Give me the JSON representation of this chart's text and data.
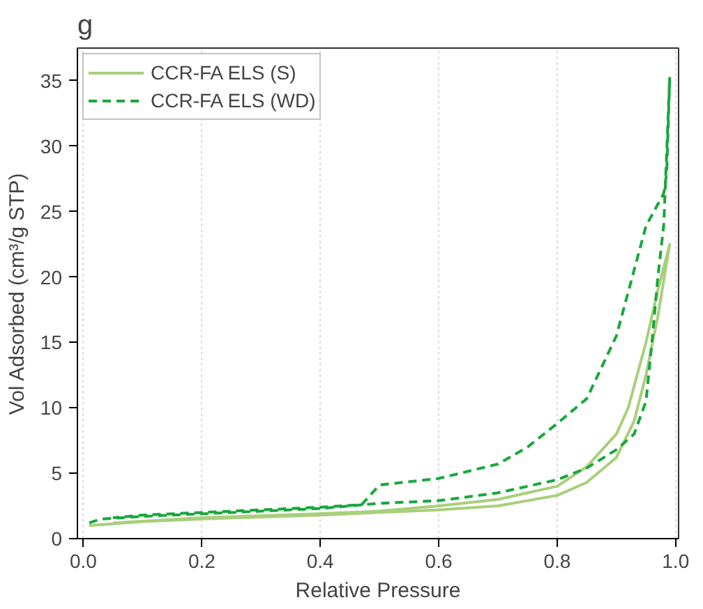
{
  "chart_data": {
    "type": "line",
    "title": "g",
    "xlabel": "Relative Pressure",
    "ylabel": "Vol Adsorbed (cm³/g STP)",
    "xlim": [
      -0.01,
      1.005
    ],
    "ylim": [
      0,
      37.5
    ],
    "xticks": [
      {
        "value": 0,
        "label": "0.0"
      },
      0.2,
      0.4,
      0.6,
      0.8,
      {
        "value": 1,
        "label": "1.0"
      }
    ],
    "yticks": [
      0,
      5,
      10,
      15,
      20,
      25,
      30,
      35
    ],
    "grid": "x",
    "legend": "top left",
    "series": [
      {
        "name": "CCR-FA ELS (S)",
        "color": "#a8cf7a",
        "line_style": "solid",
        "x": [
          0.01,
          0.1,
          0.2,
          0.4,
          0.6,
          0.7,
          0.8,
          0.85,
          0.9,
          0.93,
          0.95,
          0.97,
          0.99,
          0.97,
          0.95,
          0.92,
          0.9,
          0.85,
          0.8,
          0.7,
          0.6,
          0.5,
          0.4,
          0.2,
          0.05
        ],
        "values": [
          1.0,
          1.3,
          1.5,
          1.8,
          2.2,
          2.5,
          3.3,
          4.3,
          6.2,
          9,
          12.5,
          17,
          22.5,
          19,
          15,
          10,
          8,
          5.5,
          4.0,
          3.0,
          2.5,
          2.1,
          1.9,
          1.6,
          1.2
        ]
      },
      {
        "name": "CCR-FA ELS (WD)",
        "color": "#16a83a",
        "line_style": "dashed",
        "x": [
          0.01,
          0.03,
          0.1,
          0.2,
          0.3,
          0.4,
          0.5,
          0.6,
          0.7,
          0.8,
          0.85,
          0.9,
          0.93,
          0.95,
          0.96,
          0.97,
          0.98,
          0.99,
          0.985,
          0.98,
          0.95,
          0.9,
          0.85,
          0.8,
          0.75,
          0.7,
          0.6,
          0.5,
          0.47,
          0.4,
          0.3,
          0.2,
          0.1,
          0.05
        ],
        "values": [
          1.2,
          1.5,
          1.7,
          1.9,
          2.1,
          2.3,
          2.7,
          2.9,
          3.5,
          4.5,
          5.4,
          6.8,
          8,
          10.5,
          15,
          20,
          24,
          35.2,
          28,
          26.4,
          23.9,
          15.5,
          10.7,
          8.8,
          7.0,
          5.7,
          4.6,
          4.1,
          2.6,
          2.4,
          2.2,
          2.0,
          1.8,
          1.6
        ]
      }
    ]
  }
}
